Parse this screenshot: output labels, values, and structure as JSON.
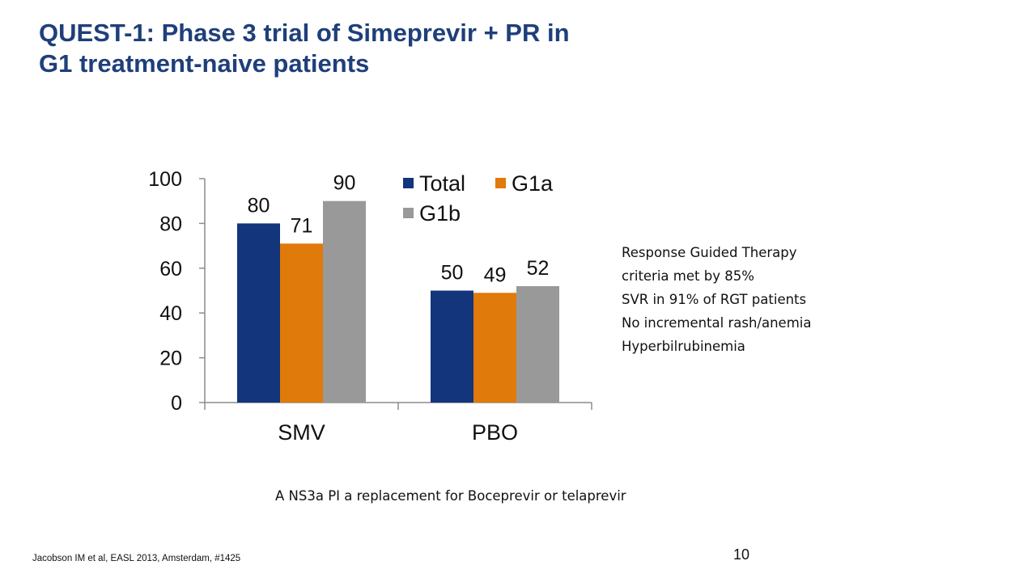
{
  "slide": {
    "title_lines": [
      "QUEST-1: Phase 3 trial of Simeprevir + PR in",
      "G1 treatment-naive patients"
    ],
    "notes": [
      "Response Guided Therapy",
      "criteria met by 85%",
      "SVR in 91% of RGT patients",
      "No incremental rash/anemia",
      "Hyperbilrubinemia"
    ],
    "caption": "A NS3a PI a replacement for Boceprevir or telaprevir",
    "citation": "Jacobson IM et al, EASL 2013, Amsterdam, #1425",
    "page_number": "10"
  },
  "chart_data": {
    "type": "bar",
    "title": "",
    "xlabel": "",
    "ylabel": "",
    "categories": [
      "SMV",
      "PBO"
    ],
    "series": [
      {
        "name": "Total",
        "color": "#12357C",
        "values": [
          80,
          50
        ]
      },
      {
        "name": "G1a",
        "color": "#E07A0B",
        "values": [
          71,
          49
        ]
      },
      {
        "name": "G1b",
        "color": "#999999",
        "values": [
          90,
          52
        ]
      }
    ],
    "ylim": [
      0,
      100
    ],
    "yticks": [
      0,
      20,
      40,
      60,
      80,
      100
    ],
    "grid": false,
    "legend_position": "top-right"
  }
}
